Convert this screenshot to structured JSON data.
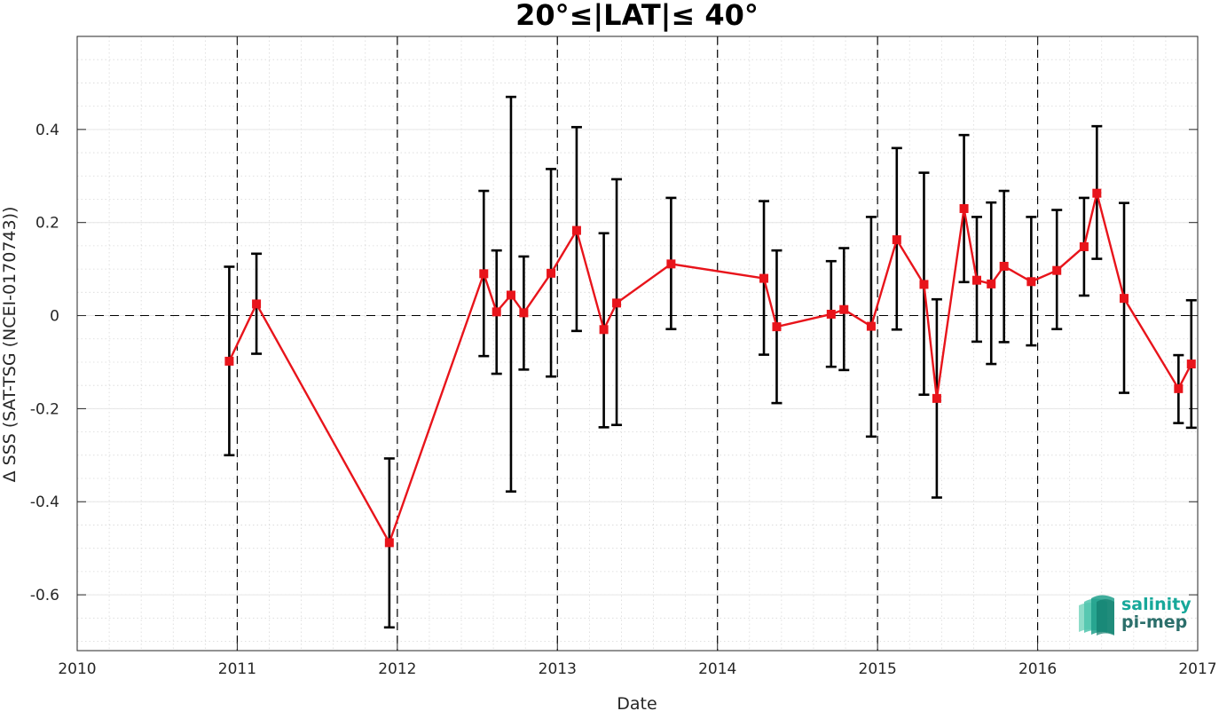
{
  "chart_data": {
    "type": "line",
    "title": "20°≤|LAT|≤ 40°",
    "xlabel": "Date",
    "ylabel": "Δ SSS (SAT-TSG (NCEI-0170743))",
    "xlim": [
      2010,
      2017
    ],
    "ylim": [
      -0.72,
      0.6
    ],
    "x_ticks": [
      2010,
      2011,
      2012,
      2013,
      2014,
      2015,
      2016,
      2017
    ],
    "x_tick_labels": [
      "2010",
      "2011",
      "2012",
      "2013",
      "2014",
      "2015",
      "2016",
      "2017"
    ],
    "y_ticks": [
      -0.6,
      -0.4,
      -0.2,
      0,
      0.2,
      0.4
    ],
    "y_tick_labels": [
      "-0.6",
      "-0.4",
      "-0.2",
      "0",
      "0.2",
      "0.4"
    ],
    "grid": true,
    "minor_grid": true,
    "reference_line_y": 0,
    "year_divider_lines": [
      2011,
      2012,
      2013,
      2014,
      2015,
      2016
    ],
    "series": [
      {
        "color": "#e8141b",
        "errorbar_color": "#000000",
        "points": [
          {
            "x": 2010.95,
            "y": -0.098,
            "lo": -0.3,
            "hi": 0.105
          },
          {
            "x": 2011.12,
            "y": 0.025,
            "lo": -0.082,
            "hi": 0.133
          },
          {
            "x": 2011.95,
            "y": -0.488,
            "lo": -0.67,
            "hi": -0.307
          },
          {
            "x": 2012.54,
            "y": 0.09,
            "lo": -0.087,
            "hi": 0.268
          },
          {
            "x": 2012.62,
            "y": 0.008,
            "lo": -0.125,
            "hi": 0.14
          },
          {
            "x": 2012.71,
            "y": 0.044,
            "lo": -0.378,
            "hi": 0.47
          },
          {
            "x": 2012.79,
            "y": 0.006,
            "lo": -0.116,
            "hi": 0.127
          },
          {
            "x": 2012.96,
            "y": 0.091,
            "lo": -0.131,
            "hi": 0.315
          },
          {
            "x": 2013.12,
            "y": 0.183,
            "lo": -0.033,
            "hi": 0.405
          },
          {
            "x": 2013.29,
            "y": -0.03,
            "lo": -0.24,
            "hi": 0.177
          },
          {
            "x": 2013.37,
            "y": 0.027,
            "lo": -0.235,
            "hi": 0.293
          },
          {
            "x": 2013.71,
            "y": 0.111,
            "lo": -0.029,
            "hi": 0.253
          },
          {
            "x": 2014.29,
            "y": 0.08,
            "lo": -0.084,
            "hi": 0.246
          },
          {
            "x": 2014.37,
            "y": -0.024,
            "lo": -0.188,
            "hi": 0.14
          },
          {
            "x": 2014.71,
            "y": 0.003,
            "lo": -0.11,
            "hi": 0.117
          },
          {
            "x": 2014.79,
            "y": 0.013,
            "lo": -0.117,
            "hi": 0.145
          },
          {
            "x": 2014.96,
            "y": -0.023,
            "lo": -0.26,
            "hi": 0.212
          },
          {
            "x": 2015.12,
            "y": 0.163,
            "lo": -0.03,
            "hi": 0.36
          },
          {
            "x": 2015.29,
            "y": 0.067,
            "lo": -0.17,
            "hi": 0.307
          },
          {
            "x": 2015.37,
            "y": -0.178,
            "lo": -0.391,
            "hi": 0.035
          },
          {
            "x": 2015.54,
            "y": 0.23,
            "lo": 0.072,
            "hi": 0.388
          },
          {
            "x": 2015.62,
            "y": 0.076,
            "lo": -0.056,
            "hi": 0.212
          },
          {
            "x": 2015.71,
            "y": 0.068,
            "lo": -0.104,
            "hi": 0.243
          },
          {
            "x": 2015.79,
            "y": 0.106,
            "lo": -0.057,
            "hi": 0.268
          },
          {
            "x": 2015.96,
            "y": 0.073,
            "lo": -0.064,
            "hi": 0.212
          },
          {
            "x": 2016.12,
            "y": 0.097,
            "lo": -0.029,
            "hi": 0.227
          },
          {
            "x": 2016.29,
            "y": 0.148,
            "lo": 0.043,
            "hi": 0.253
          },
          {
            "x": 2016.37,
            "y": 0.263,
            "lo": 0.122,
            "hi": 0.407
          },
          {
            "x": 2016.54,
            "y": 0.037,
            "lo": -0.166,
            "hi": 0.242
          },
          {
            "x": 2016.88,
            "y": -0.157,
            "lo": -0.231,
            "hi": -0.085
          },
          {
            "x": 2016.96,
            "y": -0.104,
            "lo": -0.241,
            "hi": 0.033
          }
        ]
      }
    ]
  },
  "logo": {
    "line1": "salinity",
    "line2": "pi-mep",
    "color": "#17a89a"
  }
}
